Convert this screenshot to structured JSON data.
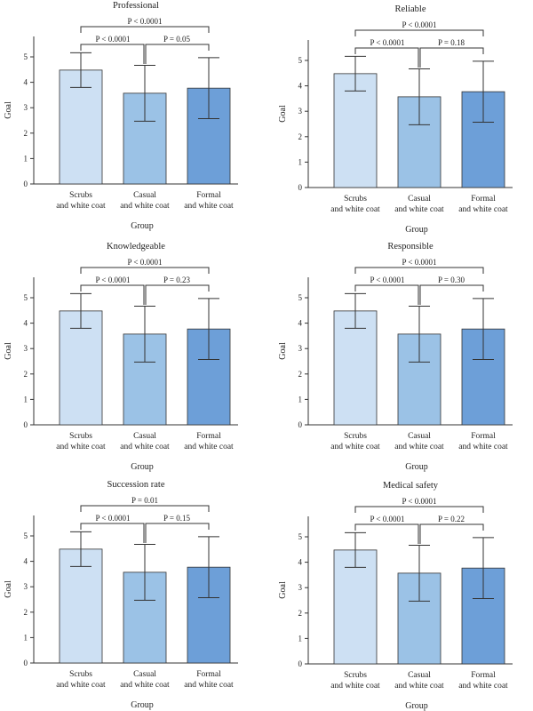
{
  "colors": {
    "scrubs": "#cde0f3",
    "casual": "#9bc2e6",
    "formal": "#6d9fd8"
  },
  "chart_data": [
    {
      "type": "bar",
      "title": "Professional",
      "xlabel": "Group",
      "ylabel": "Goal",
      "ylim": [
        0,
        6
      ],
      "yticks": [
        0,
        1,
        2,
        3,
        4,
        5
      ],
      "categories": [
        "Scrubs and white coat",
        "Casual and white coat",
        "Formal and white coat"
      ],
      "category_lines": [
        [
          "Scrubs",
          "and white coat"
        ],
        [
          "Casual",
          "and white coat"
        ],
        [
          "Formal",
          "and white coat"
        ]
      ],
      "values": [
        4.48,
        3.57,
        3.77
      ],
      "errors": [
        0.68,
        1.1,
        1.2
      ],
      "comparisons": [
        {
          "from": 0,
          "to": 2,
          "label": "P < 0.0001"
        },
        {
          "from": 0,
          "to": 1,
          "label": "P < 0.0001"
        },
        {
          "from": 1,
          "to": 2,
          "label": "P = 0.05"
        }
      ]
    },
    {
      "type": "bar",
      "title": "Reliable",
      "xlabel": "Group",
      "ylabel": "Goal",
      "ylim": [
        0,
        6
      ],
      "yticks": [
        0,
        1,
        2,
        3,
        4,
        5
      ],
      "categories": [
        "Scrubs and white coat",
        "Casual and white coat",
        "Formal and white coat"
      ],
      "category_lines": [
        [
          "Scrubs",
          "and white coat"
        ],
        [
          "Casual",
          "and white coat"
        ],
        [
          "Formal",
          "and white coat"
        ]
      ],
      "values": [
        4.48,
        3.57,
        3.77
      ],
      "errors": [
        0.68,
        1.1,
        1.2
      ],
      "comparisons": [
        {
          "from": 0,
          "to": 2,
          "label": "P < 0.0001"
        },
        {
          "from": 0,
          "to": 1,
          "label": "P < 0.0001"
        },
        {
          "from": 1,
          "to": 2,
          "label": "P = 0.18"
        }
      ]
    },
    {
      "type": "bar",
      "title": "Knowledgeable",
      "xlabel": "Group",
      "ylabel": "Goal",
      "ylim": [
        0,
        6
      ],
      "yticks": [
        0,
        1,
        2,
        3,
        4,
        5
      ],
      "categories": [
        "Scrubs and white coat",
        "Casual and white coat",
        "Formal and white coat"
      ],
      "category_lines": [
        [
          "Scrubs",
          "and white coat"
        ],
        [
          "Casual",
          "and white coat"
        ],
        [
          "Formal",
          "and white coat"
        ]
      ],
      "values": [
        4.48,
        3.57,
        3.77
      ],
      "errors": [
        0.68,
        1.1,
        1.2
      ],
      "comparisons": [
        {
          "from": 0,
          "to": 2,
          "label": "P < 0.0001"
        },
        {
          "from": 0,
          "to": 1,
          "label": "P < 0.0001"
        },
        {
          "from": 1,
          "to": 2,
          "label": "P = 0.23"
        }
      ]
    },
    {
      "type": "bar",
      "title": "Responsible",
      "xlabel": "Group",
      "ylabel": "Goal",
      "ylim": [
        0,
        6
      ],
      "yticks": [
        0,
        1,
        2,
        3,
        4,
        5
      ],
      "categories": [
        "Scrubs and white coat",
        "Casual and white coat",
        "Formal and white coat"
      ],
      "category_lines": [
        [
          "Scrubs",
          "and white coat"
        ],
        [
          "Casual",
          "and white coat"
        ],
        [
          "Formal",
          "and white coat"
        ]
      ],
      "values": [
        4.48,
        3.57,
        3.77
      ],
      "errors": [
        0.68,
        1.1,
        1.2
      ],
      "comparisons": [
        {
          "from": 0,
          "to": 2,
          "label": "P < 0.0001"
        },
        {
          "from": 0,
          "to": 1,
          "label": "P < 0.0001"
        },
        {
          "from": 1,
          "to": 2,
          "label": "P = 0.30"
        }
      ]
    },
    {
      "type": "bar",
      "title": "Succession rate",
      "xlabel": "Group",
      "ylabel": "Goal",
      "ylim": [
        0,
        6
      ],
      "yticks": [
        0,
        1,
        2,
        3,
        4,
        5
      ],
      "categories": [
        "Scrubs and white coat",
        "Casual and white coat",
        "Formal and white coat"
      ],
      "category_lines": [
        [
          "Scrubs",
          "and white coat"
        ],
        [
          "Casual",
          "and white coat"
        ],
        [
          "Formal",
          "and white coat"
        ]
      ],
      "values": [
        4.48,
        3.57,
        3.77
      ],
      "errors": [
        0.68,
        1.1,
        1.2
      ],
      "comparisons": [
        {
          "from": 0,
          "to": 2,
          "label": "P = 0.01"
        },
        {
          "from": 0,
          "to": 1,
          "label": "P < 0.0001"
        },
        {
          "from": 1,
          "to": 2,
          "label": "P = 0.15"
        }
      ]
    },
    {
      "type": "bar",
      "title": "Medical safety",
      "xlabel": "Group",
      "ylabel": "Goal",
      "ylim": [
        0,
        6
      ],
      "yticks": [
        0,
        1,
        2,
        3,
        4,
        5
      ],
      "categories": [
        "Scrubs and white coat",
        "Casual and white coat",
        "Formal and white coat"
      ],
      "category_lines": [
        [
          "Scrubs",
          "and white coat"
        ],
        [
          "Casual",
          "and white coat"
        ],
        [
          "Formal",
          "and white coat"
        ]
      ],
      "values": [
        4.48,
        3.57,
        3.77
      ],
      "errors": [
        0.68,
        1.1,
        1.2
      ],
      "comparisons": [
        {
          "from": 0,
          "to": 2,
          "label": "P < 0.0001"
        },
        {
          "from": 0,
          "to": 1,
          "label": "P < 0.0001"
        },
        {
          "from": 1,
          "to": 2,
          "label": "P = 0.22"
        }
      ]
    }
  ]
}
